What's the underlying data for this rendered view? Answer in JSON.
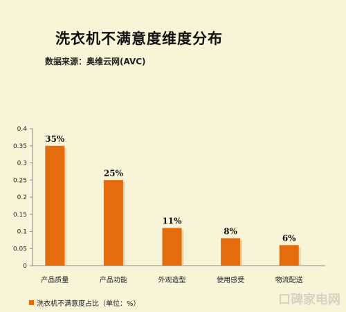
{
  "chart_data": {
    "type": "bar",
    "title": "洗衣机不满意度维度分布",
    "subtitle": "数据来源：奥维云网(AVC)",
    "categories": [
      "产品质量",
      "产品功能",
      "外观造型",
      "使用感受",
      "物流配送"
    ],
    "series": [
      {
        "name": "洗衣机不满意度占比（单位：%）",
        "values": [
          0.35,
          0.25,
          0.11,
          0.08,
          0.06
        ],
        "labels": [
          "35%",
          "25%",
          "11%",
          "8%",
          "6%"
        ]
      }
    ],
    "y_ticks": [
      "0",
      "0.05",
      "0.1",
      "0.15",
      "0.2",
      "0.25",
      "0.3",
      "0.35",
      "0.4"
    ],
    "ylim": [
      0,
      0.4
    ],
    "grid": false,
    "legend_position": "bottom-left",
    "bar_color": "#e46c0a",
    "background_color": "#f7f4d8"
  },
  "watermark": "口碑家电网"
}
